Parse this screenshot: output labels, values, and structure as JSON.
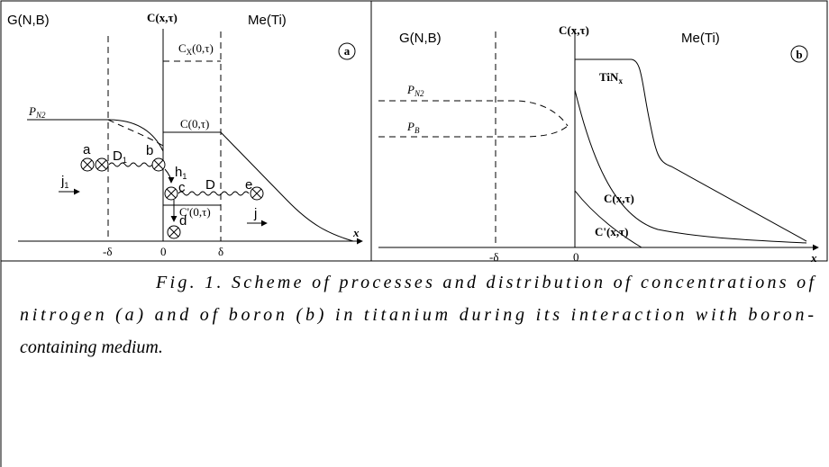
{
  "panel_a": {
    "left_medium": "G(N,B)",
    "axis_label": "C(x,τ)",
    "right_medium": "Me(Ti)",
    "panel_letter": "a",
    "surface_max": {
      "base": "C",
      "sub": "X",
      "rest": "(0,τ)"
    },
    "surface": "C(0,τ)",
    "pressure": {
      "base": "P",
      "sub": "N2"
    },
    "point_a": "a",
    "point_b": "b",
    "point_c": "c",
    "point_d": "d",
    "point_e": "e",
    "diffusion_1": {
      "base": "D",
      "sub": "1"
    },
    "transfer": {
      "base": "h",
      "sub": "1"
    },
    "diffusion": "D",
    "flux_1": {
      "base": "j",
      "sub": "1"
    },
    "surface_min": "C'(0,τ)",
    "flux": "j",
    "tick_minus": "-δ",
    "tick_zero": "0",
    "tick_plus": "δ",
    "x_axis": "x"
  },
  "panel_b": {
    "left_medium": "G(N,B)",
    "axis_label": "C(x,τ)",
    "right_medium": "Me(Ti)",
    "panel_letter": "b",
    "pressure_n": {
      "base": "P",
      "sub": "N2"
    },
    "pressure_b": {
      "base": "P",
      "sub": "B"
    },
    "nitride": {
      "base": "TiN",
      "sub": "x"
    },
    "curve_c": "C(x,τ)",
    "curve_c_prime": "C'(x,τ)",
    "tick_minus": "-δ",
    "tick_zero": "0",
    "x_axis": "x"
  },
  "caption": {
    "lines": [
      "Fig. 1. Scheme of processes and distribution of concentrations of",
      "nitrogen (a) and of boron (b) in titanium during its interaction with boron-",
      "containing medium."
    ]
  }
}
